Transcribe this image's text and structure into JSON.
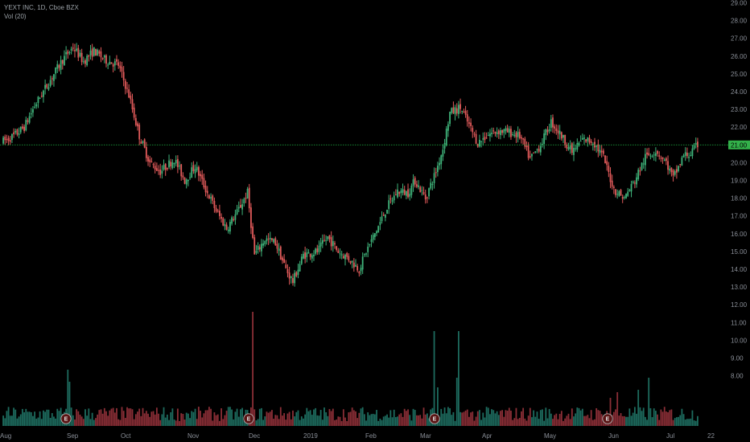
{
  "header": {
    "symbol_line": "YEXT INC, 1D, Cboe BZX",
    "indicator_line": "Vol (20)"
  },
  "colors": {
    "up": "#3fb37a",
    "down": "#e15a5a",
    "vol_up": "#1d6b5e",
    "vol_down": "#8a2e36",
    "grid_line": "#1a9a3a",
    "price_tag": "#33b14a",
    "axis_text": "#8a8f98",
    "earnings_bg": "#5a1414",
    "earnings_ring": "#b0b0b0"
  },
  "chart_data": {
    "type": "candlestick",
    "price_axis": {
      "ticks": [
        "29.00",
        "28.00",
        "27.00",
        "26.00",
        "25.00",
        "24.00",
        "23.00",
        "22.00",
        "21.00",
        "20.00",
        "19.00",
        "18.00",
        "17.00",
        "16.00",
        "15.00",
        "14.00",
        "13.00",
        "12.00",
        "11.00",
        "10.00",
        "9.00",
        "8.00"
      ],
      "range": [
        7.6,
        29.2
      ]
    },
    "time_axis": {
      "labels": [
        "Aug",
        "Sep",
        "Oct",
        "Nov",
        "Dec",
        "2019",
        "Feb",
        "Mar",
        "Apr",
        "May",
        "Jun",
        "Jul",
        "22"
      ]
    },
    "current_price": {
      "value": 21.0,
      "label": "21.00"
    },
    "earnings_markers": {
      "label": "E",
      "count": 4,
      "months": [
        "Sep",
        "Dec",
        "Mar",
        "Jun"
      ]
    },
    "waypoints": [
      [
        0,
        21.2
      ],
      [
        6,
        21.5
      ],
      [
        12,
        22.0
      ],
      [
        18,
        23.2
      ],
      [
        26,
        24.5
      ],
      [
        34,
        25.8
      ],
      [
        40,
        26.5
      ],
      [
        46,
        25.7
      ],
      [
        52,
        26.3
      ],
      [
        58,
        25.8
      ],
      [
        66,
        25.5
      ],
      [
        72,
        23.8
      ],
      [
        78,
        21.5
      ],
      [
        84,
        20.0
      ],
      [
        90,
        19.5
      ],
      [
        98,
        20.2
      ],
      [
        104,
        19.0
      ],
      [
        110,
        19.8
      ],
      [
        116,
        18.5
      ],
      [
        122,
        17.3
      ],
      [
        128,
        16.3
      ],
      [
        134,
        17.2
      ],
      [
        140,
        18.3
      ],
      [
        144,
        14.8
      ],
      [
        150,
        15.7
      ],
      [
        156,
        15.5
      ],
      [
        162,
        14.0
      ],
      [
        166,
        13.3
      ],
      [
        172,
        14.8
      ],
      [
        180,
        15.0
      ],
      [
        186,
        15.8
      ],
      [
        192,
        15.0
      ],
      [
        198,
        14.6
      ],
      [
        204,
        14.0
      ],
      [
        208,
        15.0
      ],
      [
        214,
        16.2
      ],
      [
        220,
        17.5
      ],
      [
        226,
        18.4
      ],
      [
        232,
        18.3
      ],
      [
        236,
        19.0
      ],
      [
        242,
        18.0
      ],
      [
        248,
        19.5
      ],
      [
        252,
        20.8
      ],
      [
        256,
        22.8
      ],
      [
        262,
        23.1
      ],
      [
        266,
        22.3
      ],
      [
        272,
        21.1
      ],
      [
        278,
        21.6
      ],
      [
        284,
        21.8
      ],
      [
        290,
        21.7
      ],
      [
        296,
        21.5
      ],
      [
        302,
        20.2
      ],
      [
        308,
        21.0
      ],
      [
        314,
        22.3
      ],
      [
        320,
        21.5
      ],
      [
        326,
        20.6
      ],
      [
        332,
        21.3
      ],
      [
        338,
        21.2
      ],
      [
        344,
        20.3
      ],
      [
        350,
        18.5
      ],
      [
        356,
        18.0
      ],
      [
        362,
        19.0
      ],
      [
        368,
        20.3
      ],
      [
        374,
        20.7
      ],
      [
        380,
        20.0
      ],
      [
        384,
        19.1
      ],
      [
        390,
        20.4
      ],
      [
        394,
        20.5
      ],
      [
        398,
        21.0
      ]
    ],
    "volume_spikes": [
      [
        37,
        70
      ],
      [
        38,
        55
      ],
      [
        143,
        142
      ],
      [
        247,
        118
      ],
      [
        261,
        118
      ],
      [
        249,
        48
      ],
      [
        260,
        60
      ],
      [
        348,
        35
      ],
      [
        352,
        42
      ],
      [
        370,
        60
      ],
      [
        364,
        45
      ]
    ]
  }
}
